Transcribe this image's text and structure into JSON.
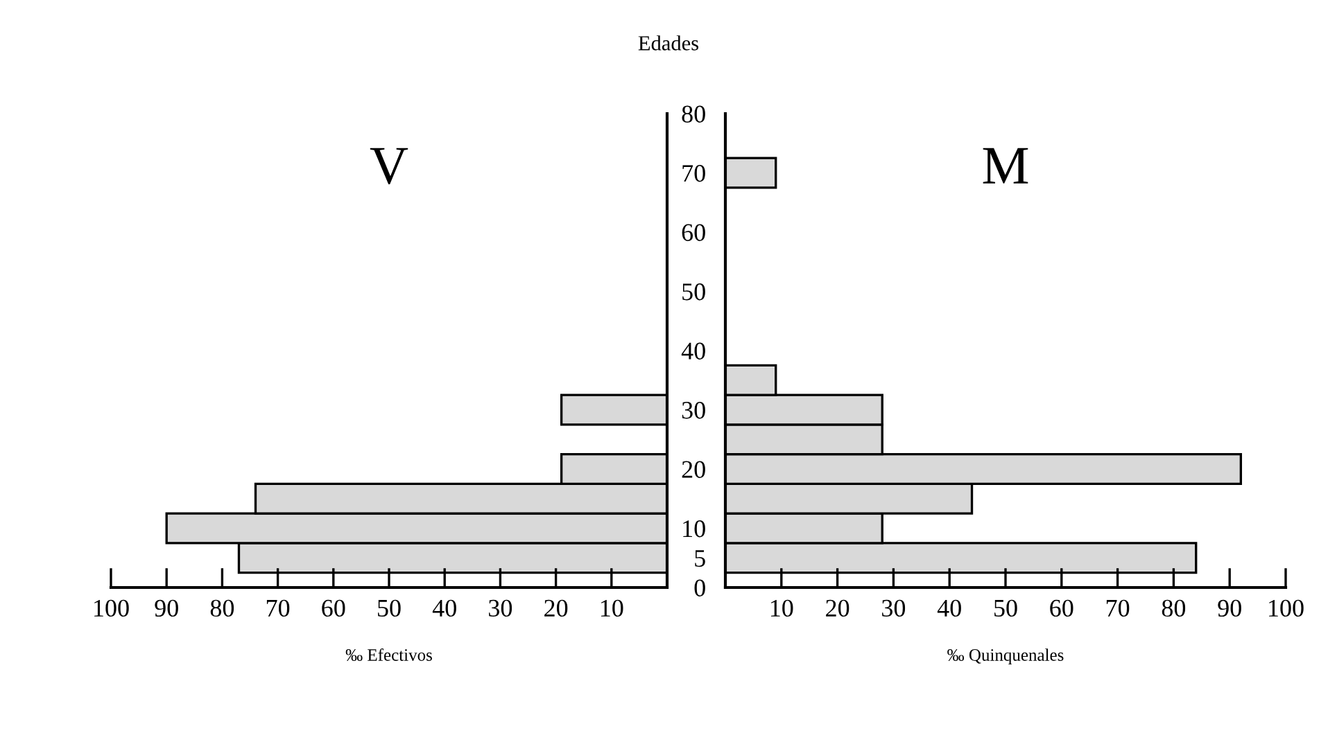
{
  "chart_data": [
    {
      "type": "bar",
      "orientation": "horizontal",
      "title": "Edades",
      "xlabel": "‰ Efectivos",
      "annotations": [
        "V"
      ],
      "x": [
        5,
        10,
        15,
        20,
        25,
        30
      ],
      "values": [
        77,
        90,
        74,
        19,
        null,
        19
      ],
      "color": "#d9d9d9",
      "xlim": [
        100,
        0
      ],
      "xticks": [
        100,
        90,
        80,
        70,
        60,
        50,
        40,
        30,
        20,
        10
      ],
      "ylim": [
        0,
        80
      ],
      "yticks": [
        0,
        5,
        10,
        20,
        30,
        40,
        50,
        60,
        70,
        80
      ],
      "tick_labels": "x",
      "grid": false,
      "legend": false
    },
    {
      "type": "bar",
      "orientation": "horizontal",
      "xlabel": "‰ Quinquenales",
      "annotations": [
        "M"
      ],
      "x": [
        5,
        10,
        15,
        20,
        25,
        30,
        35,
        40,
        45,
        50,
        55,
        60,
        65,
        70
      ],
      "values": [
        84,
        28,
        44,
        92,
        28,
        28,
        9,
        null,
        null,
        null,
        null,
        null,
        null,
        9
      ],
      "color": "#d9d9d9",
      "xlim": [
        0,
        100
      ],
      "xticks": [
        10,
        20,
        30,
        40,
        50,
        60,
        70,
        80,
        90,
        100
      ],
      "ylim": [
        0,
        80
      ],
      "yticks": [
        0,
        5,
        10,
        20,
        30,
        40,
        50,
        60,
        70,
        80
      ],
      "grid": false,
      "legend": false
    }
  ]
}
